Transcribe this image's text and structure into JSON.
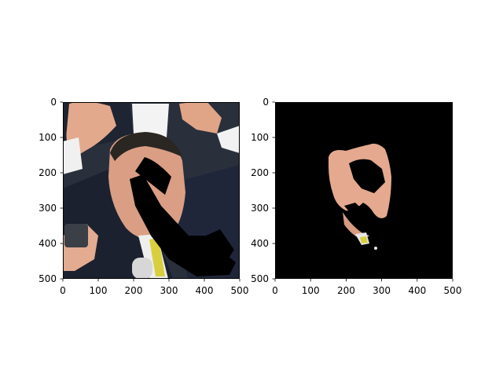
{
  "figure": {
    "panels": [
      {
        "name": "left-image-panel",
        "content": "photo",
        "xlim": [
          0,
          500
        ],
        "ylim": [
          500,
          0
        ],
        "x_ticks": [
          "0",
          "100",
          "200",
          "300",
          "400",
          "500"
        ],
        "y_ticks": [
          "0",
          "100",
          "200",
          "300",
          "400",
          "500"
        ]
      },
      {
        "name": "right-image-panel",
        "content": "masked-photo",
        "xlim": [
          0,
          500
        ],
        "ylim": [
          500,
          0
        ],
        "x_ticks": [
          "0",
          "100",
          "200",
          "300",
          "400",
          "500"
        ],
        "y_ticks": [
          "0",
          "100",
          "200",
          "300",
          "400",
          "500"
        ]
      }
    ],
    "colors": {
      "axes": "#000000",
      "mask_background": "#000000",
      "skin": "#e7b09a",
      "suit": "#1d2230",
      "shirt": "#f1f1f1",
      "tie": "#d8cf3f"
    }
  }
}
